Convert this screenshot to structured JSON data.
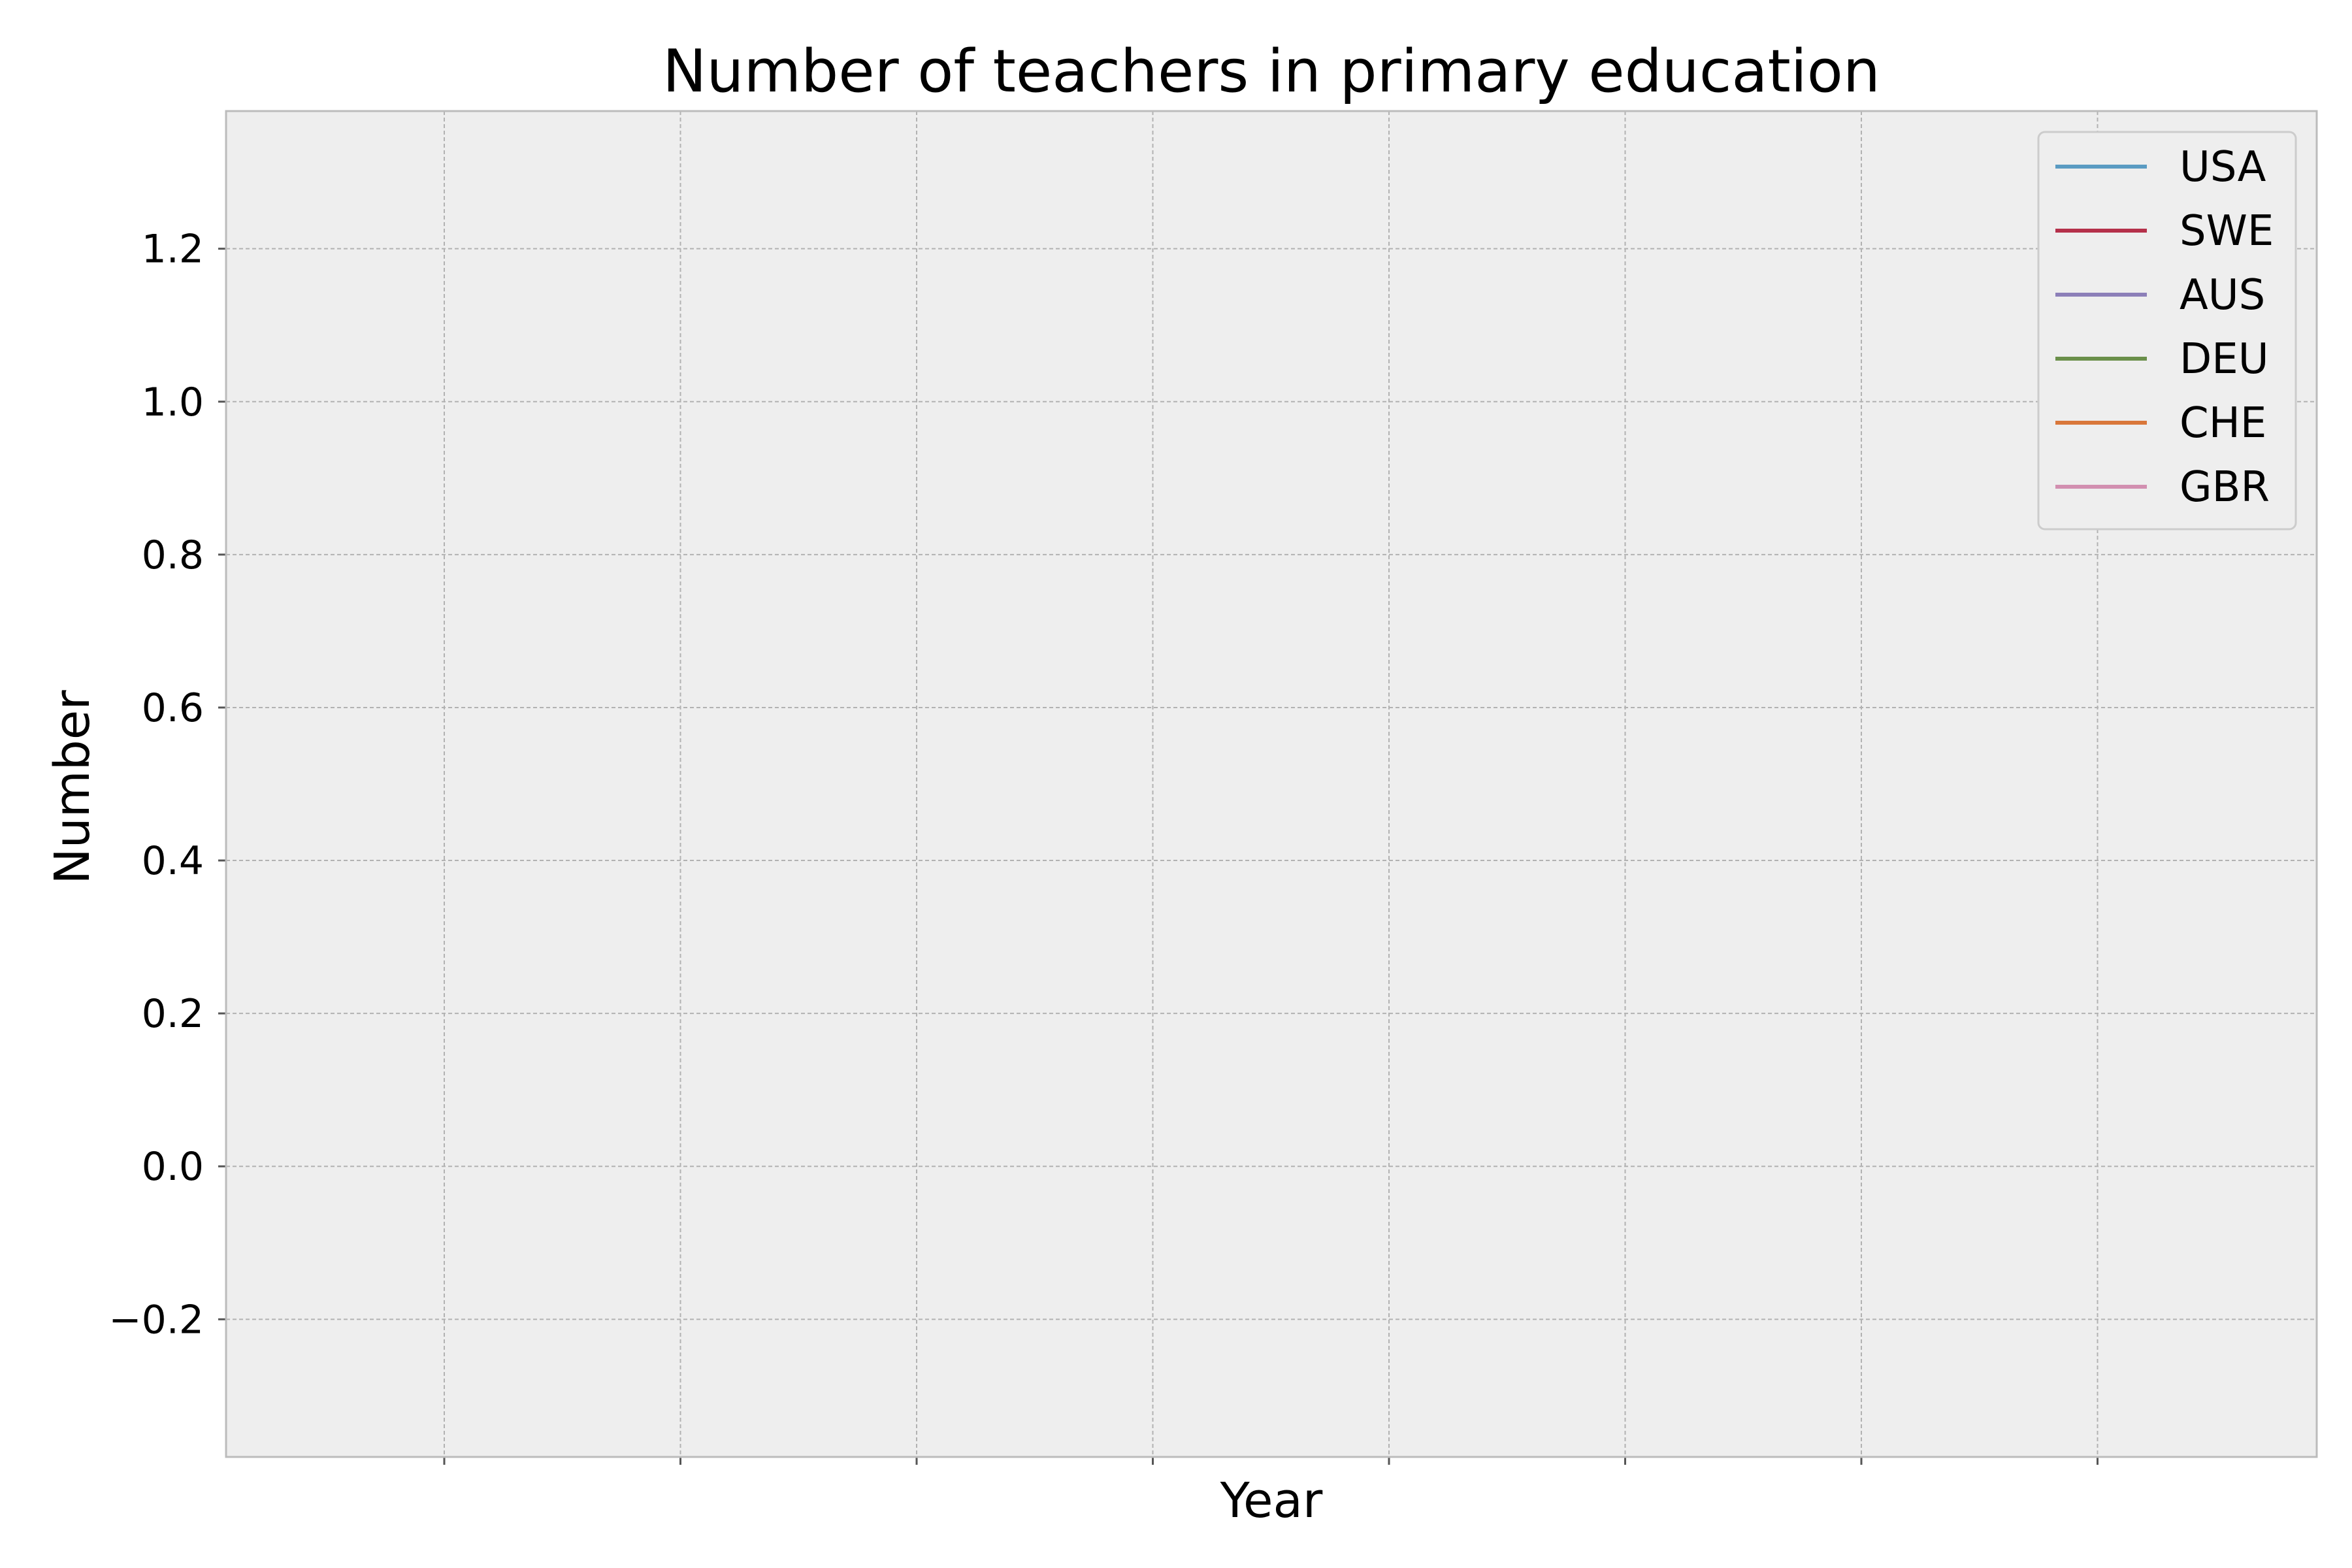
{
  "chart_data": {
    "type": "line",
    "title": "Number of teachers in primary education",
    "xlabel": "Year",
    "ylabel": "Number",
    "ylim": [
      -0.38,
      1.38
    ],
    "xticks_count": 8,
    "yticks": [
      -0.2,
      0.0,
      0.2,
      0.4,
      0.6,
      0.8,
      1.0,
      1.2
    ],
    "ytick_labels": [
      "−0.2",
      "0.0",
      "0.2",
      "0.4",
      "0.6",
      "0.8",
      "1.0",
      "1.2"
    ],
    "grid": true,
    "legend_position": "top-right",
    "series": [
      {
        "name": "USA",
        "color": "#5a9bc2",
        "values": []
      },
      {
        "name": "SWE",
        "color": "#b5304a",
        "values": []
      },
      {
        "name": "AUS",
        "color": "#8c7fb8",
        "values": []
      },
      {
        "name": "DEU",
        "color": "#6a8f4a",
        "values": []
      },
      {
        "name": "CHE",
        "color": "#d9773a",
        "values": []
      },
      {
        "name": "GBR",
        "color": "#d28fb0",
        "values": []
      }
    ]
  }
}
